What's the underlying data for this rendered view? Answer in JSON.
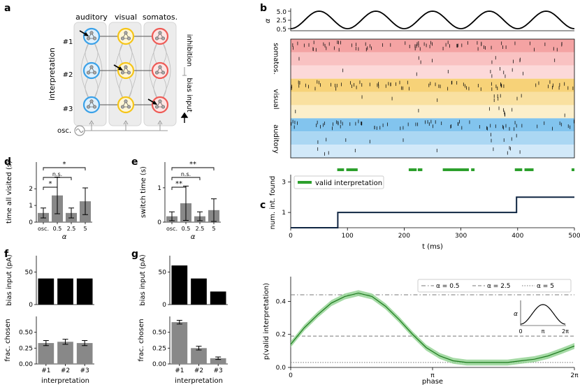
{
  "panels": {
    "a": "a",
    "b": "b",
    "c": "c",
    "d": "d",
    "e": "e",
    "f": "f",
    "g": "g"
  },
  "panel_a": {
    "modalities": [
      "auditory",
      "visual",
      "somatos."
    ],
    "interpretations": [
      "#1",
      "#2",
      "#3"
    ],
    "ylabel": "interpretation",
    "osc_label": "osc.",
    "legend_inhibition": "inhibition",
    "legend_bias": "bias input",
    "colors": {
      "auditory": "#3aa1e8",
      "visual": "#f5c518",
      "somatos": "#ee5a55"
    }
  },
  "chart_data": [
    {
      "id": "b-alpha",
      "type": "line",
      "ylabel": "α",
      "ytick_labels": [
        "5.0",
        "2.5",
        "0.5"
      ],
      "yticks": [
        5.0,
        2.5,
        0.5
      ],
      "ylim": [
        0.5,
        5.0
      ],
      "x_range_ms": [
        0,
        500
      ],
      "period_ms": 100,
      "description": "oscillatory alpha between 0.5 and 5.0, minima near 0,100,...,500 ms"
    },
    {
      "id": "b-raster",
      "type": "raster",
      "group_labels": [
        "somatos.",
        "visual",
        "auditory"
      ],
      "rows_per_group": 3,
      "row_colors": [
        "#f4a3a3",
        "#f9c2c2",
        "#fcd9d9",
        "#f7d278",
        "#f9e0a0",
        "#fcefcb",
        "#82c4ee",
        "#abd7f3",
        "#d2e9f9"
      ]
    },
    {
      "id": "b-valid",
      "type": "segments",
      "legend": "valid interpretation",
      "segments_ms": [
        [
          82,
          94
        ],
        [
          98,
          118
        ],
        [
          208,
          222
        ],
        [
          224,
          232
        ],
        [
          268,
          314
        ],
        [
          318,
          324
        ],
        [
          395,
          408
        ],
        [
          412,
          428
        ],
        [
          495,
          500
        ]
      ]
    },
    {
      "id": "b-numfound",
      "type": "step",
      "ylabel": "num. int. found",
      "xlabel": "t (ms)",
      "x_ticks": [
        0,
        100,
        200,
        300,
        400,
        500
      ],
      "y_ticks": [
        1,
        3
      ],
      "ylim": [
        0,
        3.2
      ],
      "steps": [
        [
          0,
          0
        ],
        [
          83,
          1
        ],
        [
          398,
          2
        ],
        [
          500,
          2
        ]
      ]
    },
    {
      "id": "c",
      "type": "line",
      "ylabel": "p(valid interpretation)",
      "xlabel": "phase",
      "x_tick_labels": [
        "0",
        "π",
        "2π"
      ],
      "y_tick_labels": [
        "0.0",
        "0.2",
        "0.4"
      ],
      "ylim": [
        0,
        0.55
      ],
      "hlines": [
        {
          "label": "α = 0.5",
          "value": 0.44,
          "style": "dashdot"
        },
        {
          "label": "α = 2.5",
          "value": 0.19,
          "style": "dashed"
        },
        {
          "label": "α = 5",
          "value": 0.03,
          "style": "dotted"
        }
      ],
      "curve": [
        [
          0,
          0.14
        ],
        [
          0.3,
          0.24
        ],
        [
          0.6,
          0.32
        ],
        [
          0.9,
          0.39
        ],
        [
          1.2,
          0.43
        ],
        [
          1.5,
          0.45
        ],
        [
          1.8,
          0.43
        ],
        [
          2.1,
          0.37
        ],
        [
          2.4,
          0.29
        ],
        [
          2.7,
          0.2
        ],
        [
          3.0,
          0.12
        ],
        [
          3.3,
          0.07
        ],
        [
          3.6,
          0.04
        ],
        [
          3.9,
          0.03
        ],
        [
          4.2,
          0.03
        ],
        [
          4.5,
          0.03
        ],
        [
          4.8,
          0.03
        ],
        [
          5.1,
          0.04
        ],
        [
          5.4,
          0.05
        ],
        [
          5.7,
          0.07
        ],
        [
          6.0,
          0.1
        ],
        [
          6.283,
          0.13
        ]
      ],
      "band": 0.018,
      "inset": {
        "ylabel": "α",
        "x_tick_labels": [
          "0",
          "π",
          "2π"
        ]
      }
    },
    {
      "id": "d",
      "type": "bar",
      "ylabel": "time all visited (s)",
      "xlabel": "α",
      "categories": [
        "osc.",
        "0.5",
        "2.5",
        "5"
      ],
      "values": [
        0.55,
        1.6,
        0.55,
        1.25
      ],
      "errors": [
        0.3,
        1.1,
        0.3,
        0.8
      ],
      "y_ticks": [
        0,
        1,
        2
      ],
      "y_tick_labels": [
        "0",
        "1",
        "2"
      ],
      "ylim": [
        0,
        3.6
      ],
      "significance": [
        {
          "pair": [
            0,
            1
          ],
          "label": "*"
        },
        {
          "pair": [
            0,
            2
          ],
          "label": "n.s."
        },
        {
          "pair": [
            0,
            3
          ],
          "label": "*"
        }
      ]
    },
    {
      "id": "e",
      "type": "bar",
      "ylabel": "switch time (s)",
      "xlabel": "α",
      "categories": [
        "osc.",
        "0.5",
        "2.5",
        "5"
      ],
      "values": [
        0.17,
        0.55,
        0.17,
        0.35
      ],
      "errors": [
        0.13,
        0.5,
        0.13,
        0.33
      ],
      "y_ticks": [
        0,
        1
      ],
      "y_tick_labels": [
        "0",
        "1"
      ],
      "ylim": [
        0,
        1.75
      ],
      "significance": [
        {
          "pair": [
            0,
            1
          ],
          "label": "**"
        },
        {
          "pair": [
            0,
            2
          ],
          "label": "n.s."
        },
        {
          "pair": [
            0,
            3
          ],
          "label": "**"
        }
      ]
    },
    {
      "id": "f-top",
      "type": "bar",
      "ylabel": "bias input (pA)",
      "categories": [
        "#1",
        "#2",
        "#3"
      ],
      "values": [
        40,
        40,
        40
      ],
      "y_ticks": [
        0,
        50
      ],
      "ylim": [
        0,
        75
      ]
    },
    {
      "id": "f-bottom",
      "type": "bar",
      "ylabel": "frac. chosen",
      "xlabel": "interpretation",
      "categories": [
        "#1",
        "#2",
        "#3"
      ],
      "values": [
        0.33,
        0.35,
        0.33
      ],
      "errors": [
        0.04,
        0.04,
        0.04
      ],
      "y_tick_labels": [
        "0.00",
        "0.25",
        "0.50"
      ],
      "ylim": [
        0,
        0.75
      ]
    },
    {
      "id": "g-top",
      "type": "bar",
      "ylabel": "bias input (pA)",
      "categories": [
        "#1",
        "#2",
        "#3"
      ],
      "values": [
        60,
        40,
        20
      ],
      "y_ticks": [
        0,
        50
      ],
      "ylim": [
        0,
        75
      ]
    },
    {
      "id": "g-bottom",
      "type": "bar",
      "ylabel": "frac. chosen",
      "xlabel": "interpretation",
      "categories": [
        "#1",
        "#2",
        "#3"
      ],
      "values": [
        0.66,
        0.25,
        0.09
      ],
      "errors": [
        0.03,
        0.03,
        0.02
      ],
      "y_tick_labels": [
        "0.00",
        "0.25",
        "0.50"
      ],
      "ylim": [
        0,
        0.75
      ]
    }
  ]
}
